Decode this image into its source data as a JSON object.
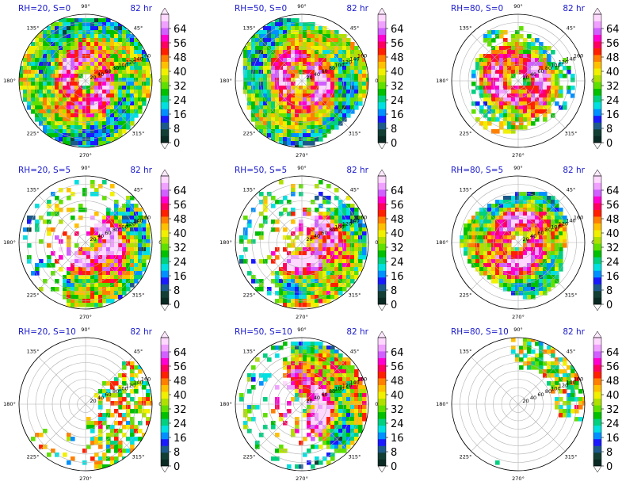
{
  "figure": {
    "colorbar_ticks": [
      "0",
      "8",
      "16",
      "24",
      "32",
      "40",
      "48",
      "56",
      "64"
    ],
    "colorbar_colors": [
      "#0a2a24",
      "#123e34",
      "#1c5a8a",
      "#1a1aff",
      "#0090ff",
      "#00e0e0",
      "#00d080",
      "#00c000",
      "#60e000",
      "#b0e000",
      "#f0f000",
      "#ffc000",
      "#ff8000",
      "#ff2000",
      "#ff0060",
      "#ff00d0",
      "#d060ff",
      "#f0a0ff",
      "#ffd8ff"
    ],
    "angle_labels": {
      "a0": "0°",
      "a45": "45°",
      "a90": "90°",
      "a135": "135°",
      "a180": "180°",
      "a225": "225°",
      "a270": "270°",
      "a315": "315°"
    },
    "radial_labels": [
      "20",
      "40",
      "60",
      "80",
      "100",
      "120",
      "140",
      "160"
    ]
  },
  "chart_data": [
    {
      "type": "heatmap",
      "title": "RH=20, S=0",
      "time_label": "82 hr",
      "coverage": "full-ring",
      "rh": 20,
      "shear": 0
    },
    {
      "type": "heatmap",
      "title": "RH=50, S=0",
      "time_label": "82 hr",
      "coverage": "full-ring",
      "rh": 50,
      "shear": 0
    },
    {
      "type": "heatmap",
      "title": "RH=80, S=0",
      "time_label": "82 hr",
      "coverage": "full-ring",
      "rh": 80,
      "shear": 0
    },
    {
      "type": "heatmap",
      "title": "RH=20, S=5",
      "time_label": "82 hr",
      "coverage": "partial",
      "rh": 20,
      "shear": 5
    },
    {
      "type": "heatmap",
      "title": "RH=50, S=5",
      "time_label": "82 hr",
      "coverage": "partial",
      "rh": 50,
      "shear": 5
    },
    {
      "type": "heatmap",
      "title": "RH=80, S=5",
      "time_label": "82 hr",
      "coverage": "full-ring",
      "rh": 80,
      "shear": 5
    },
    {
      "type": "heatmap",
      "title": "RH=20, S=10",
      "time_label": "82 hr",
      "coverage": "sparse",
      "rh": 20,
      "shear": 10
    },
    {
      "type": "heatmap",
      "title": "RH=50, S=10",
      "time_label": "82 hr",
      "coverage": "partial",
      "rh": 50,
      "shear": 10
    },
    {
      "type": "heatmap",
      "title": "RH=80, S=10",
      "time_label": "82 hr",
      "coverage": "sparse",
      "rh": 80,
      "shear": 10
    }
  ]
}
